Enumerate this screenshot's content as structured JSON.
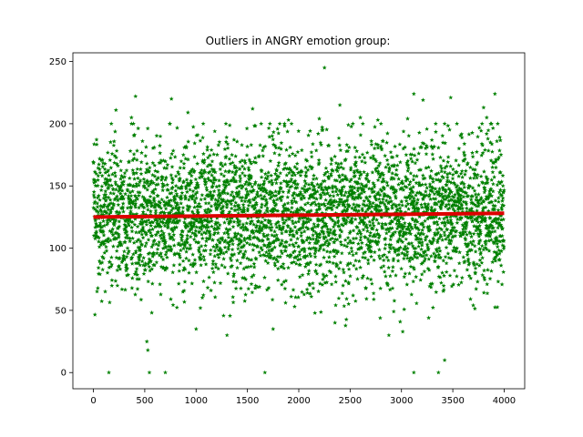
{
  "chart_data": {
    "type": "scatter",
    "title": "Outliers in ANGRY emotion group:",
    "xlabel": "",
    "ylabel": "",
    "xlim": [
      -200,
      4200
    ],
    "ylim": [
      -13,
      257
    ],
    "xticks": [
      0,
      500,
      1000,
      1500,
      2000,
      2500,
      3000,
      3500,
      4000
    ],
    "yticks": [
      0,
      50,
      100,
      150,
      200,
      250
    ],
    "grid": false,
    "legend": "none",
    "marker": "star",
    "point_color": "#008000",
    "line_color": "#dd0000",
    "trend_line": {
      "x": [
        0,
        4000
      ],
      "y": [
        125,
        128
      ]
    },
    "n_points": 4000,
    "value_mean": 127,
    "value_sd": 30,
    "outliers": [
      {
        "x": 150,
        "y": 0
      },
      {
        "x": 545,
        "y": 0
      },
      {
        "x": 700,
        "y": 0
      },
      {
        "x": 1670,
        "y": 0
      },
      {
        "x": 3120,
        "y": 0
      },
      {
        "x": 3360,
        "y": 0
      },
      {
        "x": 3420,
        "y": 10
      },
      {
        "x": 520,
        "y": 25
      },
      {
        "x": 530,
        "y": 18
      },
      {
        "x": 1750,
        "y": 35
      },
      {
        "x": 1000,
        "y": 35
      },
      {
        "x": 2250,
        "y": 245
      },
      {
        "x": 3120,
        "y": 224
      },
      {
        "x": 3910,
        "y": 224
      },
      {
        "x": 410,
        "y": 222
      },
      {
        "x": 760,
        "y": 220
      },
      {
        "x": 3210,
        "y": 219
      },
      {
        "x": 3480,
        "y": 221
      },
      {
        "x": 2400,
        "y": 215
      },
      {
        "x": 1550,
        "y": 212
      },
      {
        "x": 3800,
        "y": 213
      },
      {
        "x": 220,
        "y": 211
      },
      {
        "x": 920,
        "y": 209
      },
      {
        "x": 370,
        "y": 205
      },
      {
        "x": 2600,
        "y": 205
      },
      {
        "x": 2200,
        "y": 204
      },
      {
        "x": 1900,
        "y": 203
      },
      {
        "x": 2770,
        "y": 203
      },
      {
        "x": 3060,
        "y": 204
      },
      {
        "x": 3830,
        "y": 205
      }
    ]
  }
}
